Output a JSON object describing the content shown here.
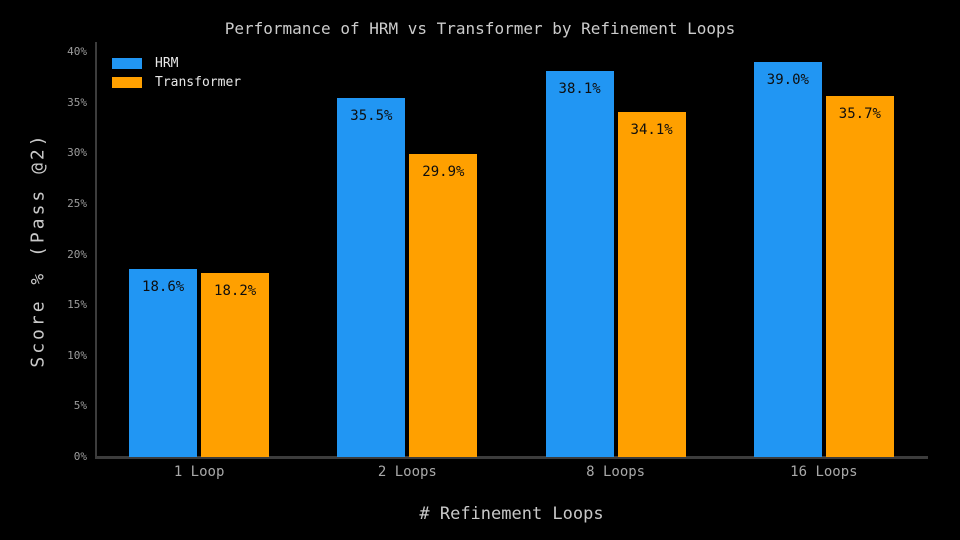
{
  "chart_data": {
    "type": "bar",
    "title": "Performance of HRM vs Transformer by Refinement Loops",
    "xlabel": "# Refinement Loops",
    "ylabel": "Score % (Pass @2)",
    "categories": [
      "1 Loop",
      "2 Loops",
      "8 Loops",
      "16 Loops"
    ],
    "series": [
      {
        "name": "HRM",
        "color": "#2196F3",
        "values": [
          18.6,
          35.5,
          38.1,
          39.0
        ],
        "value_labels": [
          "18.6%",
          "35.5%",
          "38.1%",
          "39.0%"
        ]
      },
      {
        "name": "Transformer",
        "color": "#FFA000",
        "values": [
          18.2,
          29.9,
          34.1,
          35.7
        ],
        "value_labels": [
          "18.2%",
          "29.9%",
          "34.1%",
          "35.7%"
        ]
      }
    ],
    "ytick_values": [
      0,
      5,
      10,
      15,
      20,
      25,
      30,
      35,
      40
    ],
    "ytick_labels": [
      "0%",
      "5%",
      "10%",
      "15%",
      "20%",
      "25%",
      "30%",
      "35%",
      "40%"
    ],
    "ylim": [
      0,
      41
    ],
    "grid": false,
    "legend_position": "upper-left",
    "colors": {
      "background": "#000000",
      "spine": "#3c3c3c",
      "title_text": "#cccccc",
      "axis_label_text": "#c9c9c9",
      "tick_text": "#a8a8a8",
      "bar_value_text": "#0e0e0e",
      "legend_text": "#e8e8e8"
    }
  }
}
